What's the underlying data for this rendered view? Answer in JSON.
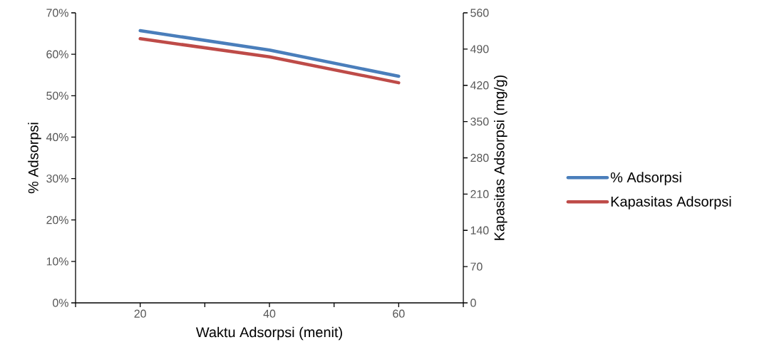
{
  "chart_data": {
    "type": "line",
    "xlabel": "Waktu Adsorpsi (menit)",
    "ylabel": "% Adsorpsi",
    "y2label": "Kapasitas Adsorpsi (mg/g)",
    "x": [
      20,
      40,
      60
    ],
    "series": [
      {
        "name": "% Adsorpsi",
        "color": "#4a7ebb",
        "values": [
          65.7,
          61,
          54.7
        ]
      },
      {
        "name": "Kapasitas Adsorpsi",
        "color": "#be4b48",
        "values": [
          510,
          475,
          425
        ],
        "axis": "y2"
      }
    ],
    "xlim": [
      10,
      70
    ],
    "xticks": [
      {
        "value": 10,
        "label": null
      },
      20,
      {
        "value": 30,
        "label": null
      },
      40,
      {
        "value": 50,
        "label": null
      },
      60,
      {
        "value": 70,
        "label": null
      }
    ],
    "ylim": [
      0,
      70
    ],
    "yticks": [
      {
        "value": 0,
        "label": "0%"
      },
      {
        "value": 10,
        "label": "10%"
      },
      {
        "value": 20,
        "label": "20%"
      },
      {
        "value": 30,
        "label": "30%"
      },
      {
        "value": 40,
        "label": "40%"
      },
      {
        "value": 50,
        "label": "50%"
      },
      {
        "value": 60,
        "label": "60%"
      },
      {
        "value": 70,
        "label": "70%"
      }
    ],
    "y2lim": [
      0,
      560
    ],
    "y2ticks": [
      0,
      70,
      140,
      210,
      280,
      350,
      420,
      490,
      560
    ],
    "legend": "right",
    "marker": "none",
    "line_style": "solid",
    "grid": false
  }
}
